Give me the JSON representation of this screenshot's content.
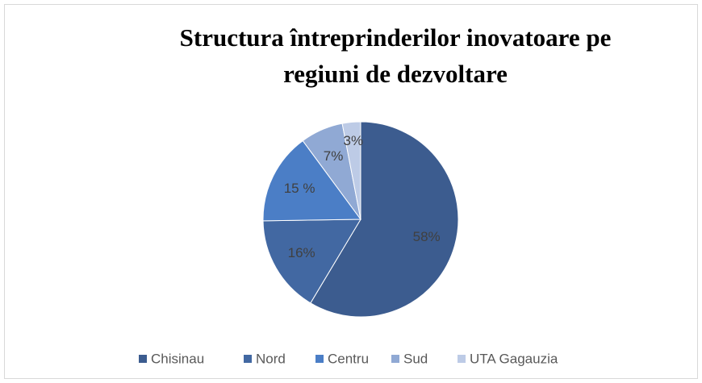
{
  "chart_data": {
    "type": "pie",
    "title": [
      "Structura întreprinderilor inovatoare pe",
      "regiuni de dezvoltare"
    ],
    "categories": [
      "Chisinau",
      "Nord",
      "Centru",
      "Sud",
      "UTA Gagauzia"
    ],
    "values": [
      58,
      16,
      15,
      7,
      3
    ],
    "value_labels": [
      "58%",
      "16%",
      "15 %",
      "7%",
      "3%"
    ],
    "colors": [
      "#3c5c8f",
      "#4268a2",
      "#4b7ec6",
      "#90a9d4",
      "#bdcbe6"
    ],
    "legend": "bottom"
  }
}
